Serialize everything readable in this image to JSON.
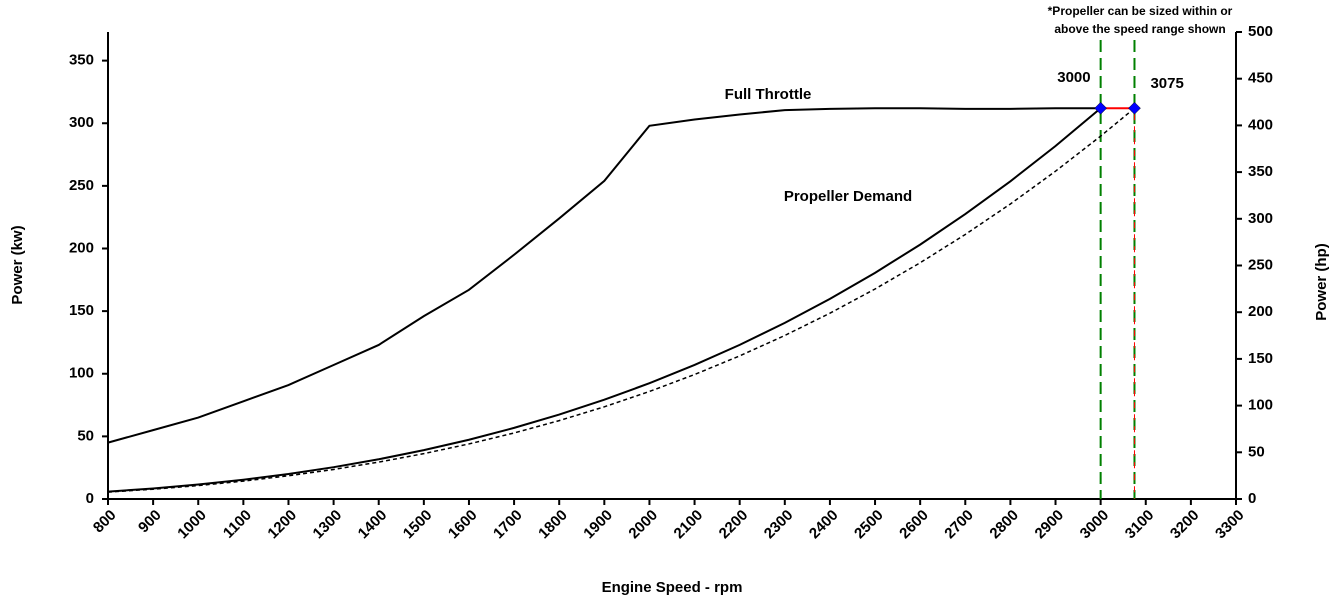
{
  "chart_data": {
    "type": "line",
    "xlabel": "Engine Speed - rpm",
    "ylabel": "Power (kw)",
    "y2label": "Power (hp)",
    "annotations": [
      "*Propeller can be sized within or",
      "above the speed range shown"
    ],
    "vlines": [
      3000,
      3075
    ],
    "vline_color": "#008000",
    "vline_color_2": "#ff0000",
    "xlim": [
      800,
      3300
    ],
    "xticks": [
      800,
      900,
      1000,
      1100,
      1200,
      1300,
      1400,
      1500,
      1600,
      1700,
      1800,
      1900,
      2000,
      2100,
      2200,
      2300,
      2400,
      2500,
      2600,
      2700,
      2800,
      2900,
      3000,
      3100,
      3200,
      3300
    ],
    "ylim": [
      0,
      372.85
    ],
    "yticks": [
      0,
      50,
      100,
      150,
      200,
      250,
      300,
      350
    ],
    "y2lim": [
      0,
      500
    ],
    "y2ticks": [
      0,
      50,
      100,
      150,
      200,
      250,
      300,
      350,
      400,
      450,
      500
    ],
    "grid": false,
    "series": [
      {
        "name": "Full Throttle",
        "color": "#000000",
        "dash": false,
        "x": [
          800,
          900,
          1000,
          1100,
          1200,
          1300,
          1400,
          1500,
          1600,
          1700,
          1800,
          1900,
          2000,
          2100,
          2200,
          2300,
          2400,
          2500,
          2600,
          2700,
          2800,
          2900,
          3000
        ],
        "values": [
          45,
          55,
          65,
          78,
          91,
          107,
          123,
          146,
          167,
          195,
          224,
          254,
          298,
          303,
          307,
          310.5,
          311.5,
          312,
          312,
          311.5,
          311.5,
          312,
          312
        ]
      },
      {
        "name": "Propeller Demand",
        "color": "#000000",
        "dash": false,
        "x": [
          800,
          900,
          1000,
          1100,
          1200,
          1300,
          1400,
          1500,
          1600,
          1700,
          1800,
          1900,
          2000,
          2100,
          2200,
          2300,
          2400,
          2500,
          2600,
          2700,
          2800,
          2900,
          3000
        ],
        "values": [
          5.92,
          8.42,
          11.56,
          15.38,
          19.97,
          25.39,
          31.71,
          39,
          47.33,
          56.77,
          67.39,
          79.26,
          92.44,
          107.02,
          123.05,
          140.6,
          159.74,
          180.56,
          203.11,
          227.45,
          253.66,
          281.83,
          312
        ]
      },
      {
        "color": "#000000",
        "dash": true,
        "x": [
          800,
          900,
          1000,
          1100,
          1200,
          1300,
          1400,
          1500,
          1600,
          1700,
          1800,
          1900,
          2000,
          2100,
          2200,
          2300,
          2400,
          2500,
          2600,
          2700,
          2800,
          2900,
          3000,
          3075
        ],
        "values": [
          5.5,
          7.82,
          10.73,
          14.28,
          18.54,
          23.58,
          29.45,
          36.22,
          43.95,
          52.72,
          62.58,
          73.6,
          85.84,
          99.38,
          114.27,
          130.56,
          148.33,
          167.67,
          188.61,
          211.21,
          235.55,
          261.71,
          289.72,
          312
        ]
      },
      {
        "color": "#ff0000",
        "dash": false,
        "marker_color": "#0000ff",
        "x": [
          3000,
          3075
        ],
        "values": [
          312,
          312
        ]
      }
    ]
  }
}
